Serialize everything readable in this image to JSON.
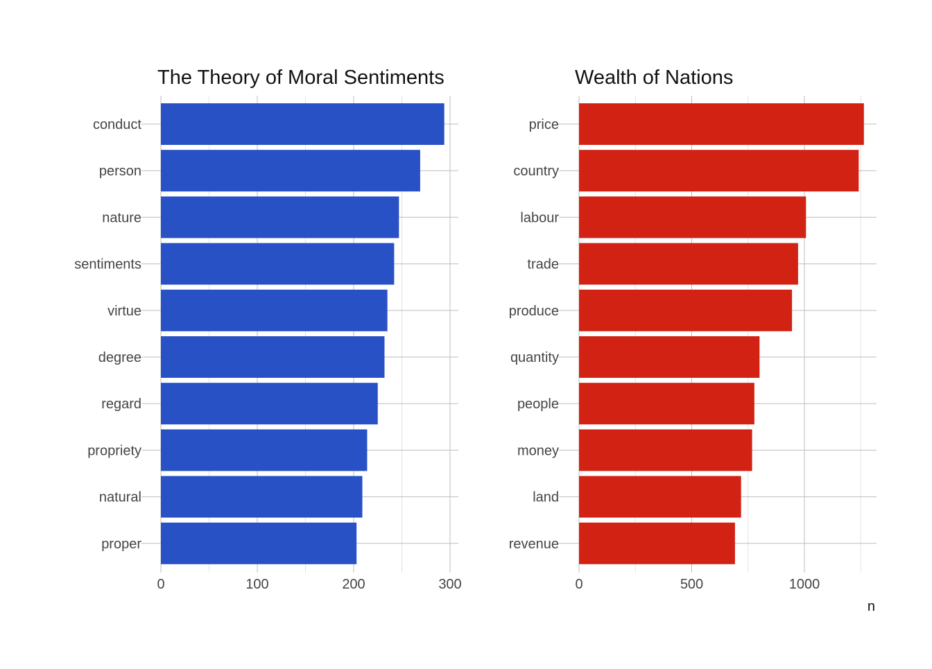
{
  "chart_data": [
    {
      "type": "bar",
      "orientation": "horizontal",
      "title": "The Theory of Moral Sentiments",
      "categories": [
        "conduct",
        "person",
        "nature",
        "sentiments",
        "virtue",
        "degree",
        "regard",
        "propriety",
        "natural",
        "proper"
      ],
      "values": [
        294,
        269,
        247,
        242,
        235,
        232,
        225,
        214,
        209,
        203
      ],
      "xlim": [
        0,
        300
      ],
      "xticks": [
        0,
        100,
        200,
        300
      ],
      "xlabel": "",
      "ylabel": "",
      "grid": true,
      "color": "#2751C4"
    },
    {
      "type": "bar",
      "orientation": "horizontal",
      "title": "Wealth of Nations",
      "categories": [
        "price",
        "country",
        "labour",
        "trade",
        "produce",
        "quantity",
        "people",
        "money",
        "land",
        "revenue"
      ],
      "values": [
        1264,
        1241,
        1007,
        972,
        945,
        801,
        778,
        768,
        719,
        692
      ],
      "xlim": [
        0,
        1250
      ],
      "xticks": [
        0,
        500,
        1000
      ],
      "xlabel": "n",
      "ylabel": "",
      "grid": true,
      "color": "#D22213"
    }
  ]
}
